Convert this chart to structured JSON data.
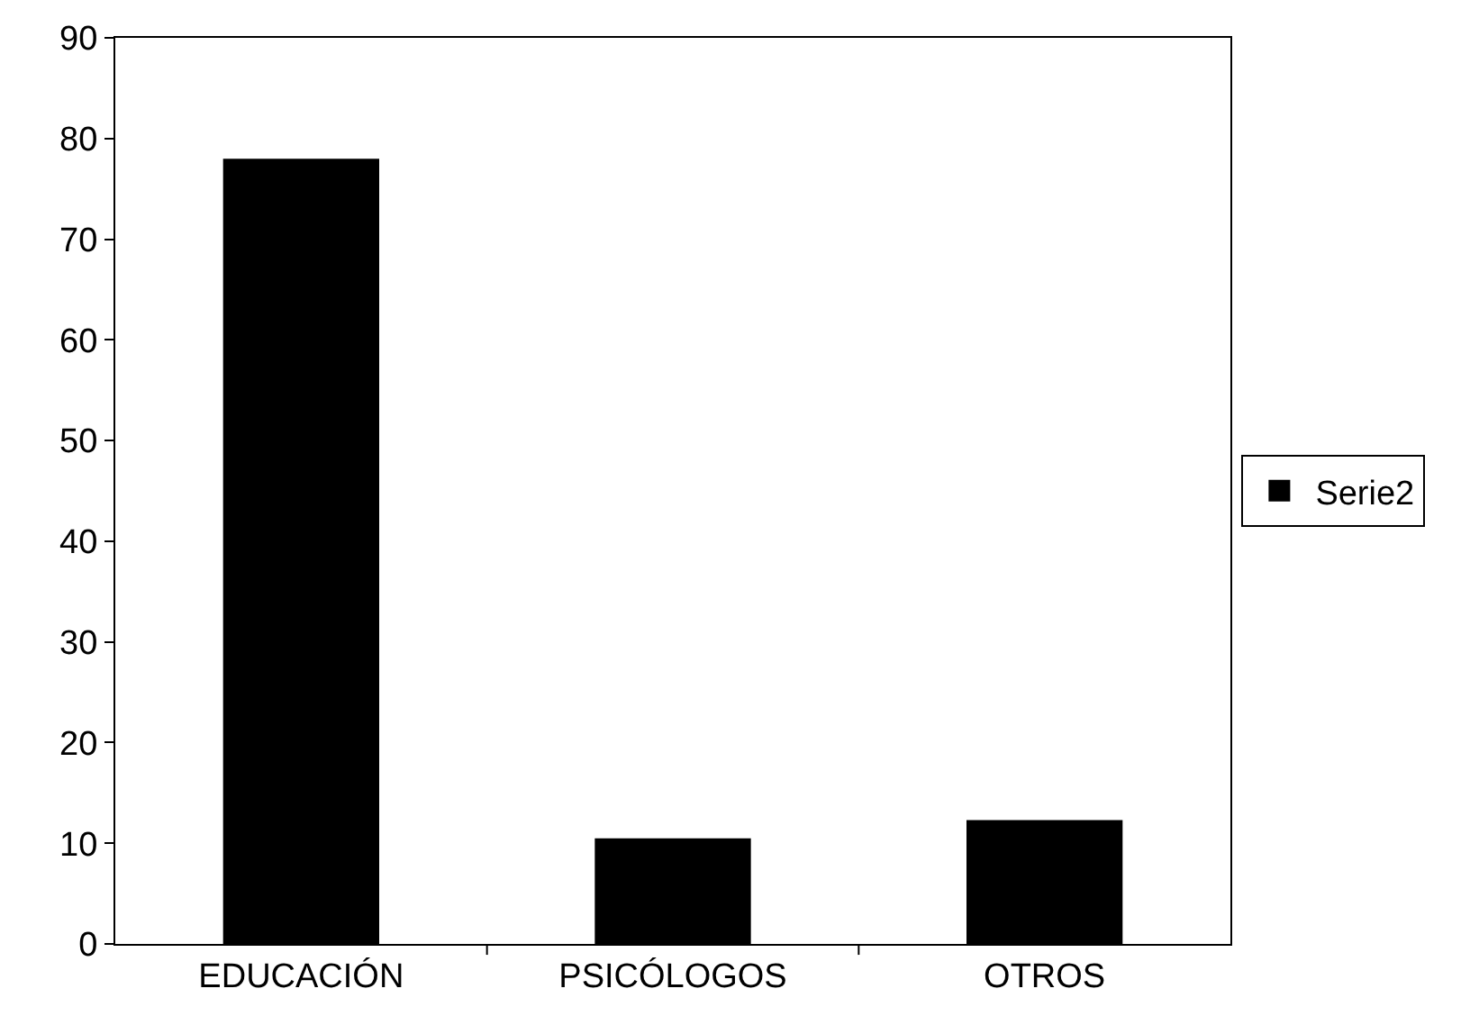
{
  "chart_data": {
    "type": "bar",
    "categories": [
      "EDUCACIÓN",
      "PSICÓLOGOS",
      "OTROS"
    ],
    "series": [
      {
        "name": "Serie2",
        "color": "#000000",
        "values": [
          78,
          10.5,
          12.3
        ]
      }
    ],
    "ylim": [
      0,
      90
    ],
    "yticks": [
      0,
      10,
      20,
      30,
      40,
      50,
      60,
      70,
      80,
      90
    ],
    "grid": false,
    "legend": "right"
  }
}
